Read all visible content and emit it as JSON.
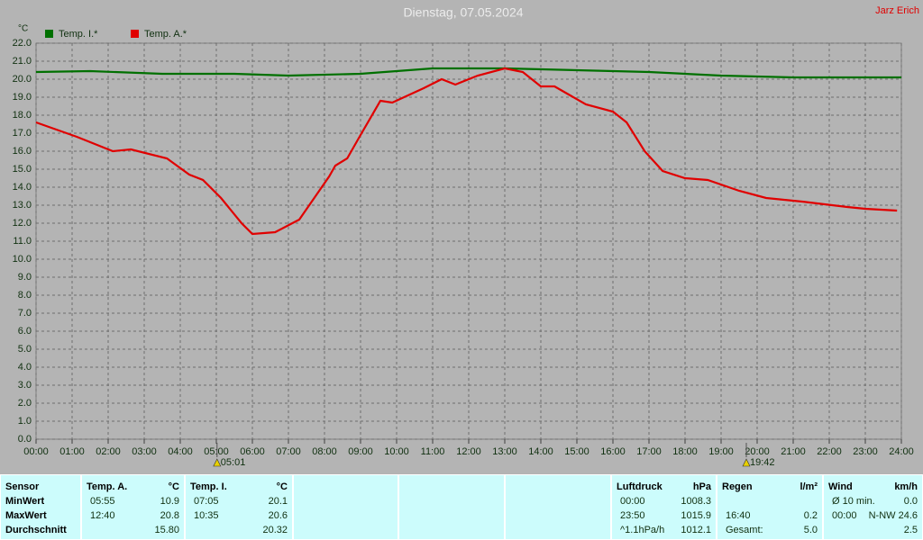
{
  "chart_data": {
    "type": "line",
    "title": "Dienstag, 07.05.2024",
    "y_label": "°C",
    "grid": true,
    "xlim": [
      0,
      24
    ],
    "ylim": [
      0,
      22
    ],
    "xticks": [
      {
        "value": 0,
        "label": "00:00"
      },
      {
        "value": 1,
        "label": "01:00"
      },
      {
        "value": 2,
        "label": "02:00"
      },
      {
        "value": 3,
        "label": "03:00"
      },
      {
        "value": 4,
        "label": "04:00"
      },
      {
        "value": 5,
        "label": "05:00"
      },
      {
        "value": 6,
        "label": "06:00"
      },
      {
        "value": 7,
        "label": "07:00"
      },
      {
        "value": 8,
        "label": "08:00"
      },
      {
        "value": 9,
        "label": "09:00"
      },
      {
        "value": 10,
        "label": "10:00"
      },
      {
        "value": 11,
        "label": "11:00"
      },
      {
        "value": 12,
        "label": "12:00"
      },
      {
        "value": 13,
        "label": "13:00"
      },
      {
        "value": 14,
        "label": "14:00"
      },
      {
        "value": 15,
        "label": "15:00"
      },
      {
        "value": 16,
        "label": "16:00"
      },
      {
        "value": 17,
        "label": "17:00"
      },
      {
        "value": 18,
        "label": "18:00"
      },
      {
        "value": 19,
        "label": "19:00"
      },
      {
        "value": 20,
        "label": "20:00"
      },
      {
        "value": 21,
        "label": "21:00"
      },
      {
        "value": 22,
        "label": "22:00"
      },
      {
        "value": 23,
        "label": "23:00"
      },
      {
        "value": 24,
        "label": "24:00"
      }
    ],
    "yticks": [
      {
        "value": 0,
        "label": "0.0"
      },
      {
        "value": 1,
        "label": "1.0"
      },
      {
        "value": 2,
        "label": "2.0"
      },
      {
        "value": 3,
        "label": "3.0"
      },
      {
        "value": 4,
        "label": "4.0"
      },
      {
        "value": 5,
        "label": "5.0"
      },
      {
        "value": 6,
        "label": "6.0"
      },
      {
        "value": 7,
        "label": "7.0"
      },
      {
        "value": 8,
        "label": "8.0"
      },
      {
        "value": 9,
        "label": "9.0"
      },
      {
        "value": 10,
        "label": "10.0"
      },
      {
        "value": 11,
        "label": "11.0"
      },
      {
        "value": 12,
        "label": "12.0"
      },
      {
        "value": 13,
        "label": "13.0"
      },
      {
        "value": 14,
        "label": "14.0"
      },
      {
        "value": 15,
        "label": "15.0"
      },
      {
        "value": 16,
        "label": "16.0"
      },
      {
        "value": 17,
        "label": "17.0"
      },
      {
        "value": 18,
        "label": "18.0"
      },
      {
        "value": 19,
        "label": "19.0"
      },
      {
        "value": 20,
        "label": "20.0"
      },
      {
        "value": 21,
        "label": "21.0"
      },
      {
        "value": 22,
        "label": "22.0"
      }
    ],
    "series": [
      {
        "name": "Temp. I.*",
        "color": "#007000",
        "x": [
          0,
          1.5,
          3.5,
          5.5,
          7,
          9,
          10,
          11,
          13,
          15,
          17,
          19,
          21,
          24
        ],
        "values": [
          20.4,
          20.45,
          20.3,
          20.3,
          20.2,
          20.3,
          20.45,
          20.6,
          20.6,
          20.5,
          20.4,
          20.2,
          20.1,
          20.1
        ]
      },
      {
        "name": "Temp. A.*",
        "color": "#e00000",
        "x": [
          0,
          1.13,
          2.13,
          2.63,
          3.63,
          4.25,
          4.63,
          5.13,
          5.7,
          6,
          6.63,
          7.3,
          7.75,
          8.13,
          8.3,
          8.63,
          9,
          9.55,
          9.88,
          10.75,
          11.25,
          11.63,
          12.25,
          13,
          13.5,
          14,
          14.38,
          15.25,
          16,
          16.38,
          16.88,
          17.38,
          18,
          18.63,
          19.5,
          20.25,
          21.25,
          22.5,
          23,
          23.88
        ],
        "values": [
          17.6,
          16.8,
          16,
          16.1,
          15.6,
          14.7,
          14.4,
          13.4,
          12,
          11.4,
          11.5,
          12.2,
          13.5,
          14.6,
          15.2,
          15.6,
          16.9,
          18.8,
          18.7,
          19.5,
          20,
          19.7,
          20.2,
          20.6,
          20.4,
          19.6,
          19.6,
          18.6,
          18.2,
          17.6,
          16,
          14.9,
          14.5,
          14.4,
          13.8,
          13.4,
          13.2,
          12.9,
          12.8,
          12.7
        ]
      }
    ],
    "annotations": [
      {
        "text": "05:01",
        "x": 5.02
      },
      {
        "text": "19:42",
        "x": 19.7
      }
    ]
  },
  "header": {
    "author": "Jarz Erich"
  },
  "table": {
    "groups": [
      {
        "rows": [
          {
            "l": "Sensor"
          },
          {
            "l": "MinWert"
          },
          {
            "l": "MaxWert"
          },
          {
            "l": "Durchschnitt"
          }
        ]
      },
      {
        "rows": [
          {
            "l": "Temp. A.",
            "r": "°C"
          },
          {
            "l": "05:55",
            "r": "10.9"
          },
          {
            "l": "12:40",
            "r": "20.8"
          },
          {
            "r": "15.80"
          }
        ]
      },
      {
        "rows": [
          {
            "l": "Temp. I.",
            "r": "°C"
          },
          {
            "l": "07:05",
            "r": "20.1"
          },
          {
            "l": "10:35",
            "r": "20.6"
          },
          {
            "r": "20.32"
          }
        ]
      },
      {
        "rows": []
      },
      {
        "rows": []
      },
      {
        "rows": []
      },
      {
        "rows": [
          {
            "l": "Luftdruck",
            "r": "hPa"
          },
          {
            "l": "00:00",
            "r": "1008.3"
          },
          {
            "l": "23:50",
            "r": "1015.9"
          },
          {
            "l": "^1.1hPa/h",
            "r": "1012.1"
          }
        ]
      },
      {
        "rows": [
          {
            "l": "Regen",
            "r": "l/m²"
          },
          {},
          {
            "l": "16:40",
            "r": "0.2"
          },
          {
            "l": "Gesamt:",
            "r": "5.0"
          }
        ]
      },
      {
        "rows": [
          {
            "l": "Wind",
            "r": "km/h"
          },
          {
            "l": "Ø 10 min.",
            "r": "0.0"
          },
          {
            "l": "00:00",
            "r": "N-NW 24.6"
          },
          {
            "r": "2.5"
          }
        ]
      }
    ]
  }
}
